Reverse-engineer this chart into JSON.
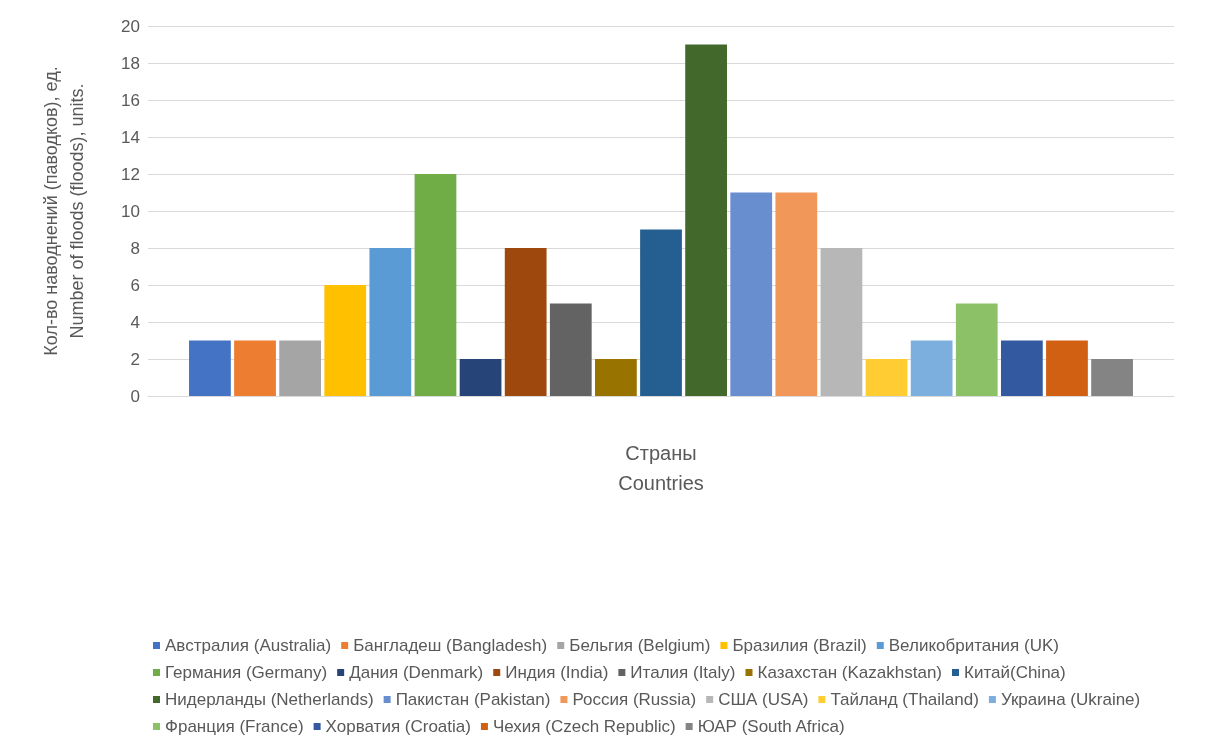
{
  "chart_data": {
    "type": "bar",
    "xlabel": "Страны\nCountries",
    "ylabel": "Кол-во наводнений (паводков), ед.\nNumber of floods (floods), units.",
    "categories": [
      null
    ],
    "ylim": [
      0,
      20
    ],
    "yticks": [
      0,
      2,
      4,
      6,
      8,
      10,
      12,
      14,
      16,
      18,
      20
    ],
    "grid": "y",
    "legend": "bottom",
    "series": [
      {
        "name": "Австралия (Australia)",
        "color": "#4472c4",
        "values": [
          3
        ]
      },
      {
        "name": "Бангладеш (Bangladesh)",
        "color": "#ed7d31",
        "values": [
          3
        ]
      },
      {
        "name": "Бельгия (Belgium)",
        "color": "#a5a5a5",
        "values": [
          3
        ]
      },
      {
        "name": "Бразилия (Brazil)",
        "color": "#ffc000",
        "values": [
          6
        ]
      },
      {
        "name": "Великобритания (UK)",
        "color": "#5b9bd5",
        "values": [
          8
        ]
      },
      {
        "name": "Германия (Germany)",
        "color": "#70ad47",
        "values": [
          12
        ]
      },
      {
        "name": "Дания (Denmark)",
        "color": "#264478",
        "values": [
          2
        ]
      },
      {
        "name": "Индия (India)",
        "color": "#9e480e",
        "values": [
          8
        ]
      },
      {
        "name": "Италия (Italy)",
        "color": "#636363",
        "values": [
          5
        ]
      },
      {
        "name": "Казахстан (Kazakhstan)",
        "color": "#997300",
        "values": [
          2
        ]
      },
      {
        "name": "Китай(China)",
        "color": "#255e91",
        "values": [
          9
        ]
      },
      {
        "name": "Нидерланды (Netherlands)",
        "color": "#43682b",
        "values": [
          19
        ]
      },
      {
        "name": "Пакистан (Pakistan)",
        "color": "#698ed0",
        "values": [
          11
        ]
      },
      {
        "name": "Россия (Russia)",
        "color": "#f1975a",
        "values": [
          11
        ]
      },
      {
        "name": "США (USA)",
        "color": "#b7b7b7",
        "values": [
          8
        ]
      },
      {
        "name": "Тайланд (Thailand)",
        "color": "#ffcd33",
        "values": [
          2
        ]
      },
      {
        "name": "Украина (Ukraine)",
        "color": "#7cafdd",
        "values": [
          3
        ]
      },
      {
        "name": "Франция (France)",
        "color": "#8cc168",
        "values": [
          5
        ]
      },
      {
        "name": "Хорватия (Croatia)",
        "color": "#335aa1",
        "values": [
          3
        ]
      },
      {
        "name": "Чехия (Czech Republic)",
        "color": "#d26012",
        "values": [
          3
        ]
      },
      {
        "name": "ЮАР (South Africa)",
        "color": "#848484",
        "values": [
          2
        ]
      }
    ]
  }
}
